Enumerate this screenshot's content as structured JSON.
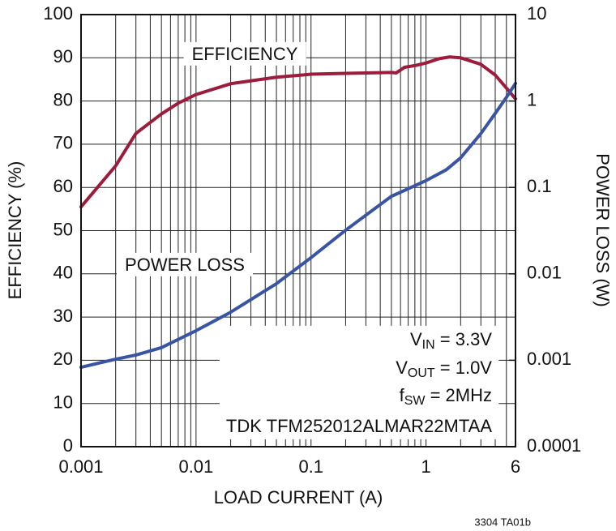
{
  "chart_data": {
    "type": "line",
    "xlabel": "LOAD CURRENT (A)",
    "ylabel": "EFFICIENCY (%)",
    "y2label": "POWER LOSS (W)",
    "footnote": "3304 TA01b",
    "xscale": "log",
    "y2scale": "log",
    "grid": true,
    "xlim": [
      0.001,
      6
    ],
    "xticks": [
      0.001,
      0.01,
      0.1,
      1,
      6
    ],
    "xminorticks": [
      0.002,
      0.003,
      0.004,
      0.005,
      0.006,
      0.007,
      0.008,
      0.009,
      0.02,
      0.03,
      0.04,
      0.05,
      0.06,
      0.07,
      0.08,
      0.09,
      0.2,
      0.3,
      0.4,
      0.5,
      0.6,
      0.7,
      0.8,
      0.9,
      2,
      3,
      4,
      5
    ],
    "ylim": [
      0,
      100
    ],
    "yticks": [
      0,
      10,
      20,
      30,
      40,
      50,
      60,
      70,
      80,
      90,
      100
    ],
    "y2lim": [
      0.0001,
      10
    ],
    "y2ticks": [
      0.0001,
      0.001,
      0.01,
      0.1,
      1,
      10
    ],
    "series": [
      {
        "name": "EFFICIENCY",
        "color": "#9b1c3c",
        "x": [
          0.001,
          0.002,
          0.003,
          0.005,
          0.007,
          0.01,
          0.02,
          0.05,
          0.1,
          0.2,
          0.5,
          0.55,
          0.65,
          0.8,
          1,
          1.3,
          1.6,
          2,
          3,
          4,
          5,
          6
        ],
        "values": [
          55.5,
          65,
          72.5,
          77,
          79.5,
          81.5,
          84,
          85.5,
          86.2,
          86.4,
          86.6,
          86.5,
          87.8,
          88.2,
          88.8,
          89.8,
          90.2,
          90,
          88.5,
          86,
          83,
          80.5
        ]
      },
      {
        "name": "POWER LOSS",
        "color": "#3a54a4",
        "axis": "y2",
        "x": [
          0.001,
          0.002,
          0.003,
          0.005,
          0.01,
          0.02,
          0.05,
          0.1,
          0.2,
          0.5,
          0.6,
          1,
          1.5,
          2,
          3,
          4,
          5,
          6
        ],
        "values": [
          0.00083,
          0.00103,
          0.00115,
          0.0014,
          0.0022,
          0.0036,
          0.0077,
          0.0154,
          0.032,
          0.079,
          0.088,
          0.12,
          0.16,
          0.22,
          0.42,
          0.72,
          1.1,
          1.6
        ]
      }
    ],
    "conditions": [
      [
        "V",
        "IN",
        " = 3.3V"
      ],
      [
        "V",
        "OUT",
        " = 1.0V"
      ],
      [
        "f",
        "SW",
        " = 2MHz"
      ]
    ],
    "part_number": "TDK TFM252012ALMAR22MTAA"
  }
}
